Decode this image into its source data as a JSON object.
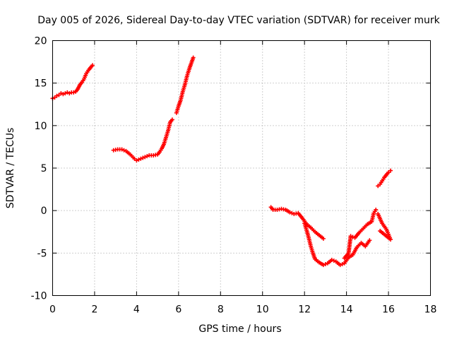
{
  "chart_data": {
    "type": "scatter",
    "title": "Day 005 of 2026, Sidereal Day-to-day VTEC variation (SDTVAR) for receiver murk",
    "xlabel": "GPS time / hours",
    "ylabel": "SDTVAR / TECUs",
    "xlim": [
      0,
      18
    ],
    "ylim": [
      -10,
      20
    ],
    "xticks": [
      0,
      2,
      4,
      6,
      8,
      10,
      12,
      14,
      16,
      18
    ],
    "yticks": [
      -10,
      -5,
      0,
      5,
      10,
      15,
      20
    ],
    "grid": true,
    "marker": "plus",
    "color": "#ff0000",
    "series": [
      {
        "name": "segment-1",
        "points": [
          [
            0.0,
            13.2
          ],
          [
            0.1,
            13.3
          ],
          [
            0.2,
            13.5
          ],
          [
            0.3,
            13.6
          ],
          [
            0.4,
            13.8
          ],
          [
            0.5,
            13.7
          ],
          [
            0.6,
            13.8
          ],
          [
            0.7,
            13.9
          ],
          [
            0.8,
            13.8
          ],
          [
            0.9,
            13.9
          ],
          [
            1.0,
            13.9
          ],
          [
            1.1,
            14.0
          ],
          [
            1.2,
            14.3
          ],
          [
            1.3,
            14.8
          ],
          [
            1.4,
            15.1
          ],
          [
            1.5,
            15.5
          ],
          [
            1.6,
            16.1
          ],
          [
            1.7,
            16.5
          ],
          [
            1.8,
            16.8
          ],
          [
            1.9,
            17.1
          ]
        ]
      },
      {
        "name": "segment-2",
        "points": [
          [
            2.9,
            7.1
          ],
          [
            3.1,
            7.2
          ],
          [
            3.3,
            7.2
          ],
          [
            3.5,
            7.0
          ],
          [
            3.7,
            6.6
          ],
          [
            3.9,
            6.1
          ],
          [
            4.0,
            5.9
          ],
          [
            4.2,
            6.1
          ],
          [
            4.4,
            6.3
          ],
          [
            4.6,
            6.5
          ],
          [
            4.8,
            6.5
          ],
          [
            5.0,
            6.6
          ],
          [
            5.1,
            6.9
          ],
          [
            5.2,
            7.3
          ],
          [
            5.3,
            7.8
          ],
          [
            5.4,
            8.6
          ],
          [
            5.5,
            9.4
          ],
          [
            5.6,
            10.4
          ],
          [
            5.7,
            10.7
          ]
        ]
      },
      {
        "name": "segment-3",
        "points": [
          [
            5.9,
            11.5
          ],
          [
            6.0,
            12.3
          ],
          [
            6.1,
            13.0
          ],
          [
            6.2,
            14.0
          ],
          [
            6.3,
            14.8
          ],
          [
            6.4,
            15.8
          ],
          [
            6.5,
            16.6
          ],
          [
            6.6,
            17.3
          ],
          [
            6.7,
            18.0
          ]
        ]
      },
      {
        "name": "segment-4",
        "points": [
          [
            10.4,
            0.4
          ],
          [
            10.5,
            0.1
          ],
          [
            10.7,
            0.1
          ],
          [
            10.9,
            0.2
          ],
          [
            11.1,
            0.1
          ],
          [
            11.3,
            -0.2
          ],
          [
            11.5,
            -0.4
          ],
          [
            11.7,
            -0.3
          ],
          [
            11.9,
            -0.9
          ],
          [
            12.1,
            -1.6
          ],
          [
            12.3,
            -2.0
          ],
          [
            12.5,
            -2.5
          ],
          [
            12.7,
            -2.9
          ],
          [
            12.9,
            -3.3
          ]
        ]
      },
      {
        "name": "segment-5",
        "points": [
          [
            12.0,
            -1.5
          ],
          [
            12.1,
            -2.3
          ],
          [
            12.2,
            -3.2
          ],
          [
            12.3,
            -4.2
          ],
          [
            12.4,
            -5.0
          ],
          [
            12.5,
            -5.7
          ],
          [
            12.7,
            -6.1
          ],
          [
            12.9,
            -6.4
          ],
          [
            13.1,
            -6.2
          ],
          [
            13.3,
            -5.8
          ],
          [
            13.5,
            -6.0
          ],
          [
            13.7,
            -6.4
          ],
          [
            13.9,
            -6.2
          ],
          [
            14.1,
            -5.5
          ],
          [
            14.3,
            -5.2
          ],
          [
            14.5,
            -4.3
          ],
          [
            14.7,
            -3.8
          ],
          [
            14.9,
            -4.2
          ],
          [
            15.1,
            -3.5
          ]
        ]
      },
      {
        "name": "segment-6",
        "points": [
          [
            13.9,
            -5.6
          ],
          [
            14.1,
            -5.0
          ],
          [
            14.2,
            -3.0
          ],
          [
            14.4,
            -3.2
          ],
          [
            14.6,
            -2.6
          ],
          [
            14.8,
            -2.1
          ],
          [
            15.0,
            -1.6
          ],
          [
            15.2,
            -1.3
          ],
          [
            15.3,
            -0.3
          ],
          [
            15.4,
            0.1
          ]
        ]
      },
      {
        "name": "segment-7",
        "points": [
          [
            15.5,
            -0.4
          ],
          [
            15.7,
            -1.5
          ],
          [
            15.9,
            -2.2
          ],
          [
            16.0,
            -2.8
          ],
          [
            16.1,
            -3.4
          ],
          [
            15.6,
            -2.4
          ]
        ]
      },
      {
        "name": "segment-8",
        "points": [
          [
            15.5,
            2.9
          ],
          [
            15.6,
            3.1
          ],
          [
            15.7,
            3.5
          ],
          [
            15.8,
            3.9
          ],
          [
            15.9,
            4.2
          ],
          [
            16.0,
            4.5
          ],
          [
            16.1,
            4.7
          ]
        ]
      }
    ]
  }
}
